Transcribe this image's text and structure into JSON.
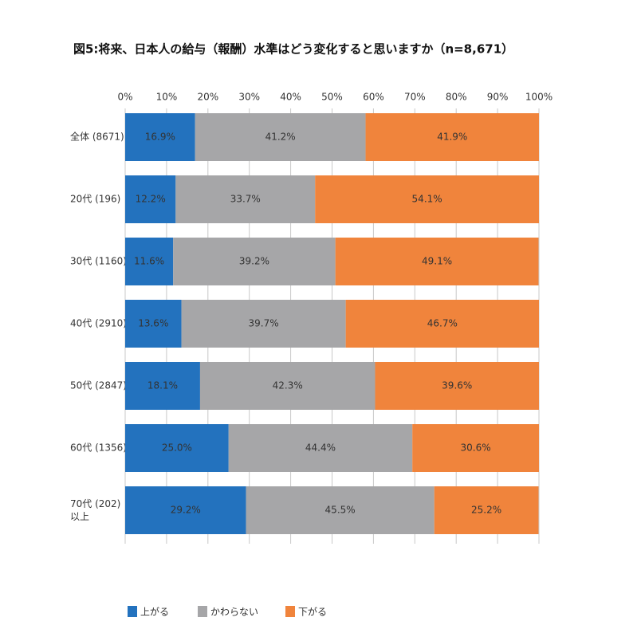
{
  "chart_data": {
    "type": "stacked-barh",
    "title": "図5:将来、日本人の給与（報酬）水準はどう変化すると思いますか（n=8,671）",
    "categories": [
      "全体 (8671)",
      "20代 (196)",
      "30代 (1160)",
      "40代 (2910)",
      "50代 (2847)",
      "60代 (1356)",
      "70代 (202)\n以上"
    ],
    "series": [
      {
        "name": "上がる",
        "color": "#2372be",
        "values": [
          16.9,
          12.2,
          11.6,
          13.6,
          18.1,
          25.0,
          29.2
        ],
        "value_labels": [
          "16.9%",
          "12.2%",
          "11.6%",
          "13.6%",
          "18.1%",
          "25.0%",
          "29.2%"
        ]
      },
      {
        "name": "かわらない",
        "color": "#a6a6a8",
        "values": [
          41.2,
          33.7,
          39.2,
          39.7,
          42.3,
          44.4,
          45.5
        ],
        "value_labels": [
          "41.2%",
          "33.7%",
          "39.2%",
          "39.7%",
          "42.3%",
          "44.4%",
          "45.5%"
        ]
      },
      {
        "name": "下がる",
        "color": "#f0843c",
        "values": [
          41.9,
          54.1,
          49.1,
          46.7,
          39.6,
          30.6,
          25.2
        ],
        "value_labels": [
          "41.9%",
          "54.1%",
          "49.1%",
          "46.7%",
          "39.6%",
          "30.6%",
          "25.2%"
        ]
      }
    ],
    "xlim": [
      0,
      100
    ],
    "xticks": [
      {
        "value": 0,
        "label": "0%"
      },
      {
        "value": 10,
        "label": "10%"
      },
      {
        "value": 20,
        "label": "20%"
      },
      {
        "value": 30,
        "label": "30%"
      },
      {
        "value": 40,
        "label": "40%"
      },
      {
        "value": 50,
        "label": "50%"
      },
      {
        "value": 60,
        "label": "60%"
      },
      {
        "value": 70,
        "label": "70%"
      },
      {
        "value": 80,
        "label": "80%"
      },
      {
        "value": 90,
        "label": "90%"
      },
      {
        "value": 100,
        "label": "100%"
      }
    ],
    "grid": true,
    "legend": "bottom"
  }
}
